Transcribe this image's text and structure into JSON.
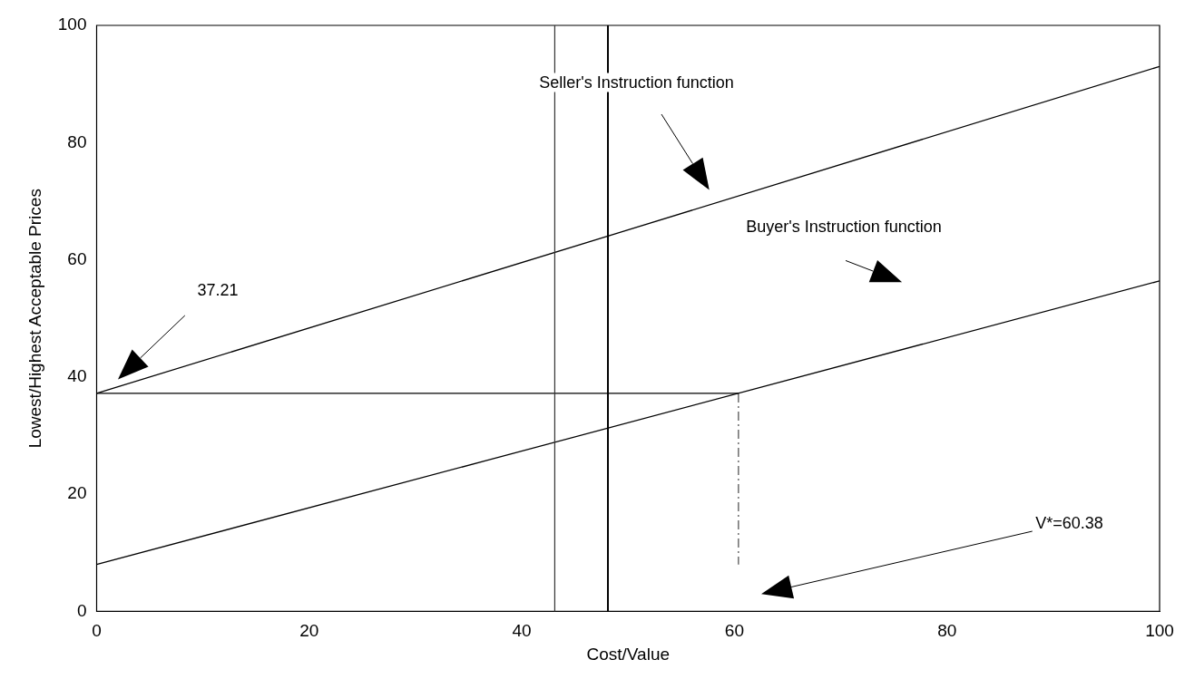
{
  "chart_data": {
    "type": "line",
    "xlabel": "Cost/Value",
    "ylabel": "Lowest/Highest Acceptable Prices",
    "xlim": [
      0,
      100
    ],
    "xticks": [
      0,
      20,
      40,
      60,
      80,
      100
    ],
    "ylim": [
      0,
      100
    ],
    "yticks": [
      0,
      20,
      40,
      60,
      80,
      100
    ],
    "series": [
      {
        "color": "#000000",
        "x": [
          0,
          100
        ],
        "values": [
          37.21,
          93
        ]
      },
      {
        "color": "#000000",
        "x": [
          0,
          100
        ],
        "values": [
          8,
          56.4
        ]
      },
      {
        "color": "#000000",
        "x": [
          0,
          60.38
        ],
        "values": [
          37.21,
          37.21
        ]
      },
      {
        "color": "#555555",
        "x": [
          60.38,
          60.38
        ],
        "values": [
          37.21,
          8
        ],
        "line_style": "dashed"
      }
    ],
    "ref_lines": [
      {
        "axis": "x",
        "value": 43.1,
        "color": "#333333"
      },
      {
        "axis": "x",
        "value": 48.1,
        "color": "#000000"
      }
    ],
    "annotations": [
      "37.21",
      "Seller's Instruction function",
      "Buyer's Instruction function",
      "V*=60.38"
    ],
    "legend": false,
    "marker": "none",
    "line_style": "solid"
  }
}
